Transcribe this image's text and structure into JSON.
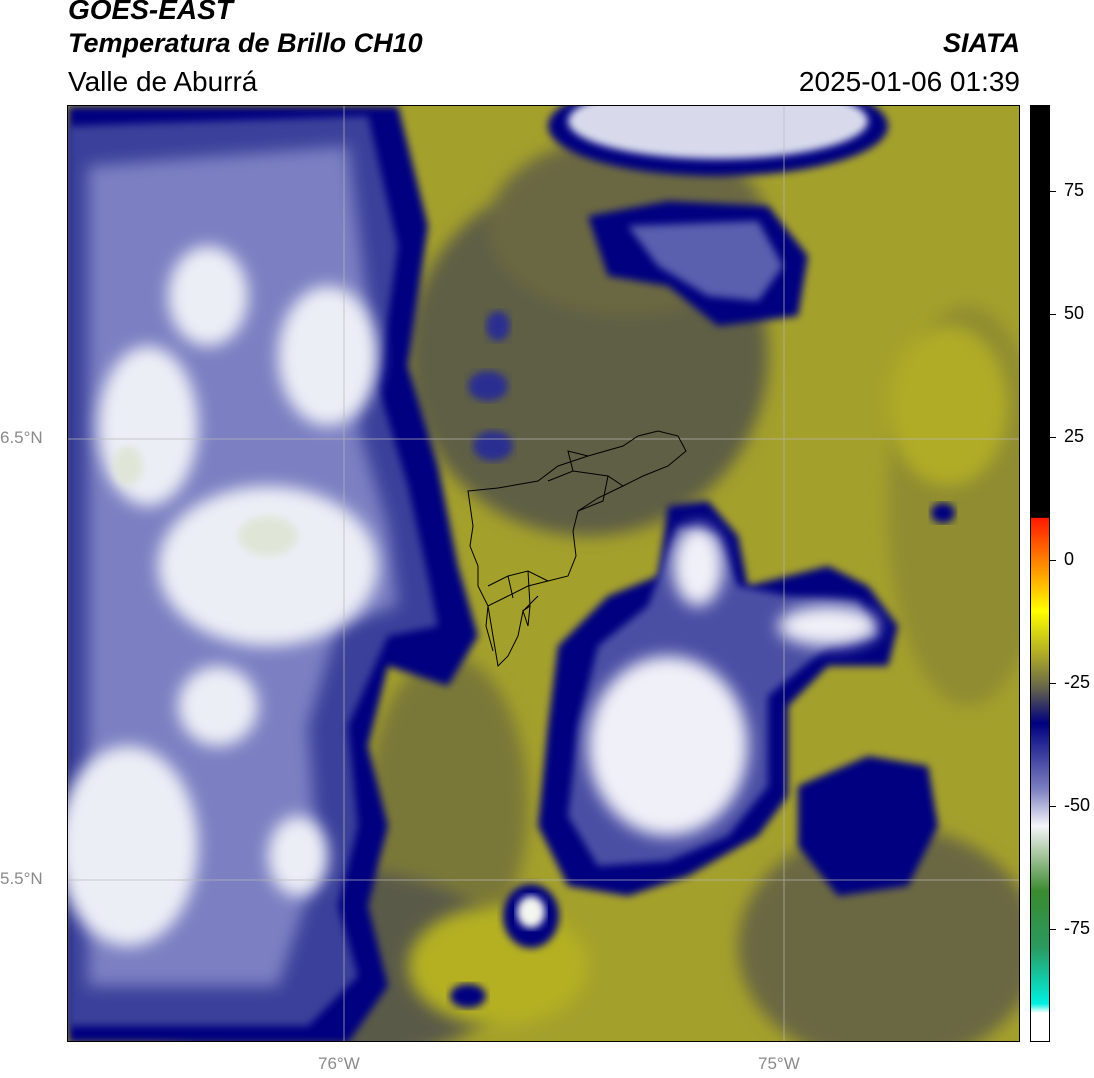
{
  "header": {
    "satellite": "GOES-EAST",
    "product": "Temperatura de Brillo CH10",
    "region": "Valle de Aburrá",
    "agency": "SIATA",
    "datetime": "2025-01-06 01:39"
  },
  "map": {
    "lat_labels": [
      "6.5°N",
      "5.5°N"
    ],
    "lon_labels": [
      "76°W",
      "75°W"
    ],
    "colors": {
      "cloud_cold": "#f2f2f8",
      "cloud_mid": "#7a7ec0",
      "cloud_edge": "#000080",
      "warm_olive": "#a8a42a",
      "dark_olive": "#6b6a3a",
      "gridline": "#b8b8b8"
    }
  },
  "colorbar": {
    "tick_labels": [
      "75",
      "50",
      "25",
      "0",
      "-25",
      "-50",
      "-75"
    ],
    "ticks_values": [
      75,
      50,
      25,
      0,
      -25,
      -50,
      -75
    ],
    "range": [
      -95,
      90
    ]
  }
}
